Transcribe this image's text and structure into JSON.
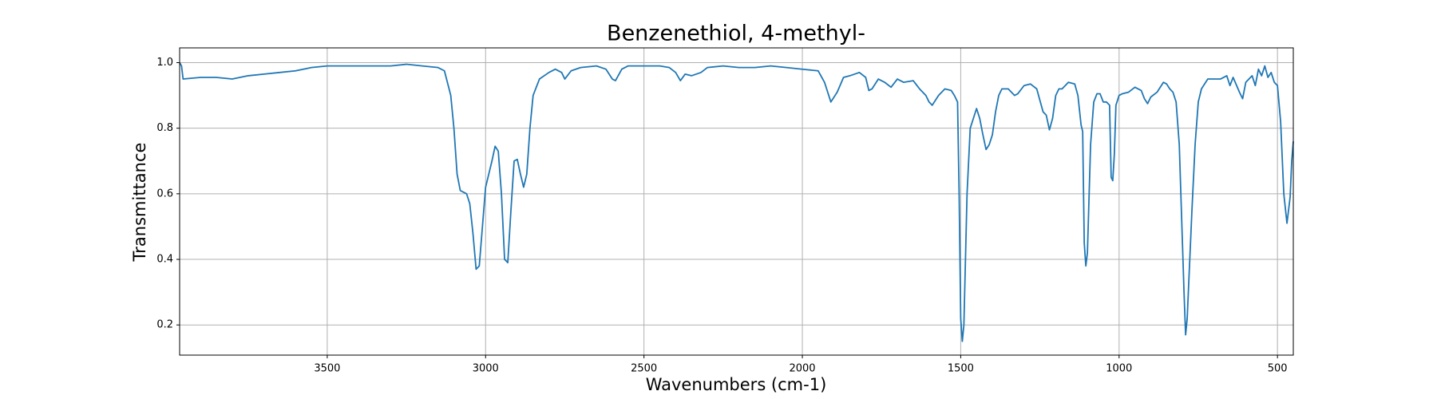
{
  "chart_data": {
    "type": "line",
    "title": "Benzenethiol, 4-methyl-",
    "x_label": "Wavenumbers (cm-1)",
    "y_label": "Transmittance",
    "x": [
      3966,
      3960,
      3955,
      3900,
      3850,
      3800,
      3750,
      3700,
      3650,
      3600,
      3550,
      3500,
      3450,
      3400,
      3350,
      3300,
      3250,
      3200,
      3150,
      3130,
      3110,
      3100,
      3090,
      3080,
      3070,
      3060,
      3050,
      3040,
      3030,
      3020,
      3010,
      3000,
      2990,
      2980,
      2970,
      2960,
      2950,
      2940,
      2930,
      2920,
      2910,
      2900,
      2890,
      2880,
      2870,
      2860,
      2850,
      2830,
      2800,
      2780,
      2760,
      2750,
      2730,
      2700,
      2650,
      2620,
      2600,
      2590,
      2570,
      2550,
      2500,
      2450,
      2420,
      2400,
      2385,
      2370,
      2350,
      2320,
      2300,
      2250,
      2200,
      2150,
      2100,
      2050,
      2000,
      1950,
      1930,
      1910,
      1890,
      1870,
      1850,
      1820,
      1800,
      1790,
      1780,
      1760,
      1740,
      1720,
      1700,
      1680,
      1650,
      1630,
      1610,
      1600,
      1590,
      1570,
      1550,
      1530,
      1520,
      1510,
      1505,
      1500,
      1495,
      1490,
      1480,
      1470,
      1460,
      1450,
      1440,
      1430,
      1420,
      1410,
      1400,
      1390,
      1380,
      1370,
      1350,
      1330,
      1320,
      1300,
      1280,
      1260,
      1240,
      1230,
      1220,
      1210,
      1200,
      1190,
      1180,
      1160,
      1140,
      1130,
      1120,
      1115,
      1110,
      1105,
      1100,
      1090,
      1080,
      1070,
      1060,
      1050,
      1040,
      1030,
      1025,
      1020,
      1015,
      1010,
      1000,
      990,
      970,
      950,
      930,
      920,
      910,
      900,
      880,
      860,
      850,
      840,
      830,
      820,
      810,
      800,
      795,
      790,
      785,
      780,
      770,
      760,
      750,
      740,
      720,
      700,
      680,
      660,
      650,
      640,
      620,
      610,
      600,
      580,
      570,
      560,
      550,
      540,
      530,
      520,
      510,
      500,
      490,
      480,
      470,
      460,
      455,
      450
    ],
    "series": [
      {
        "color": "#1f77b4",
        "values": [
          1.0,
          0.99,
          0.95,
          0.955,
          0.955,
          0.95,
          0.96,
          0.965,
          0.97,
          0.975,
          0.985,
          0.99,
          0.99,
          0.99,
          0.99,
          0.99,
          0.995,
          0.99,
          0.985,
          0.975,
          0.9,
          0.8,
          0.66,
          0.61,
          0.605,
          0.6,
          0.57,
          0.48,
          0.37,
          0.38,
          0.5,
          0.62,
          0.66,
          0.7,
          0.745,
          0.73,
          0.6,
          0.4,
          0.39,
          0.55,
          0.7,
          0.705,
          0.66,
          0.62,
          0.66,
          0.8,
          0.9,
          0.95,
          0.97,
          0.98,
          0.97,
          0.95,
          0.975,
          0.985,
          0.99,
          0.98,
          0.95,
          0.945,
          0.98,
          0.99,
          0.99,
          0.99,
          0.985,
          0.97,
          0.945,
          0.965,
          0.96,
          0.97,
          0.985,
          0.99,
          0.985,
          0.985,
          0.99,
          0.985,
          0.98,
          0.975,
          0.94,
          0.88,
          0.91,
          0.955,
          0.96,
          0.97,
          0.955,
          0.915,
          0.92,
          0.95,
          0.94,
          0.925,
          0.95,
          0.94,
          0.945,
          0.92,
          0.9,
          0.88,
          0.87,
          0.9,
          0.92,
          0.915,
          0.9,
          0.88,
          0.6,
          0.22,
          0.15,
          0.2,
          0.6,
          0.8,
          0.83,
          0.86,
          0.83,
          0.78,
          0.735,
          0.75,
          0.78,
          0.85,
          0.9,
          0.92,
          0.92,
          0.9,
          0.905,
          0.93,
          0.935,
          0.92,
          0.85,
          0.84,
          0.795,
          0.83,
          0.9,
          0.92,
          0.92,
          0.94,
          0.935,
          0.9,
          0.81,
          0.79,
          0.45,
          0.38,
          0.42,
          0.75,
          0.88,
          0.905,
          0.905,
          0.88,
          0.88,
          0.87,
          0.65,
          0.64,
          0.72,
          0.87,
          0.9,
          0.905,
          0.91,
          0.925,
          0.915,
          0.89,
          0.875,
          0.895,
          0.91,
          0.94,
          0.935,
          0.92,
          0.91,
          0.88,
          0.75,
          0.45,
          0.3,
          0.17,
          0.22,
          0.33,
          0.55,
          0.75,
          0.88,
          0.92,
          0.95,
          0.95,
          0.95,
          0.96,
          0.93,
          0.955,
          0.91,
          0.89,
          0.94,
          0.96,
          0.93,
          0.98,
          0.96,
          0.99,
          0.955,
          0.97,
          0.94,
          0.93,
          0.82,
          0.6,
          0.51,
          0.59,
          0.7,
          0.76
        ]
      }
    ],
    "xlim": [
      3966,
      450
    ],
    "ylim": [
      0.108,
      1.045
    ],
    "xticks": [
      3500,
      3000,
      2500,
      2000,
      1500,
      1000,
      500
    ],
    "yticks": [
      0.2,
      0.4,
      0.6,
      0.8,
      {
        "value": 1,
        "label": "1.0"
      }
    ],
    "grid": true
  }
}
